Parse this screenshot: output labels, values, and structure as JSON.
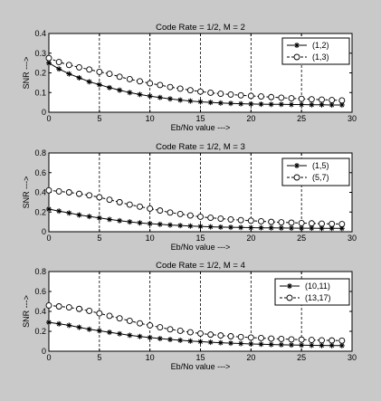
{
  "chart_data": [
    {
      "type": "line",
      "title": "Code Rate = 1/2, M = 2",
      "xlabel": "Eb/No value --->",
      "ylabel": "SNR --->",
      "xlim": [
        0,
        30
      ],
      "ylim": [
        0,
        0.4
      ],
      "xticks": [
        0,
        5,
        10,
        15,
        20,
        25,
        30
      ],
      "yticks": [
        0,
        0.1,
        0.2,
        0.3,
        0.4
      ],
      "grid": "vertical dashed at x ticks",
      "legend_position": "top-right",
      "x": [
        0,
        1,
        2,
        3,
        4,
        5,
        6,
        7,
        8,
        9,
        10,
        11,
        12,
        13,
        14,
        15,
        16,
        17,
        18,
        19,
        20,
        21,
        22,
        23,
        24,
        25,
        26,
        27,
        28,
        29
      ],
      "series": [
        {
          "name": "(1,2)",
          "marker": "asterisk",
          "linestyle": "solid",
          "values": [
            0.25,
            0.22,
            0.195,
            0.175,
            0.155,
            0.14,
            0.125,
            0.112,
            0.1,
            0.09,
            0.082,
            0.075,
            0.068,
            0.062,
            0.057,
            0.053,
            0.05,
            0.047,
            0.045,
            0.043,
            0.042,
            0.041,
            0.04,
            0.04,
            0.039,
            0.039,
            0.038,
            0.038,
            0.037,
            0.037
          ]
        },
        {
          "name": "(1,3)",
          "marker": "circle",
          "linestyle": "dashed",
          "values": [
            0.275,
            0.255,
            0.24,
            0.228,
            0.217,
            0.205,
            0.195,
            0.18,
            0.168,
            0.157,
            0.147,
            0.138,
            0.128,
            0.12,
            0.112,
            0.105,
            0.099,
            0.094,
            0.09,
            0.086,
            0.083,
            0.08,
            0.077,
            0.074,
            0.071,
            0.068,
            0.066,
            0.064,
            0.062,
            0.06
          ]
        }
      ]
    },
    {
      "type": "line",
      "title": "Code Rate = 1/2, M = 3",
      "xlabel": "Eb/No value --->",
      "ylabel": "SNR --->",
      "xlim": [
        0,
        30
      ],
      "ylim": [
        0,
        0.8
      ],
      "xticks": [
        0,
        5,
        10,
        15,
        20,
        25,
        30
      ],
      "yticks": [
        0,
        0.2,
        0.4,
        0.6,
        0.8
      ],
      "grid": "vertical dashed at x ticks",
      "legend_position": "top-right",
      "x": [
        0,
        1,
        2,
        3,
        4,
        5,
        6,
        7,
        8,
        9,
        10,
        11,
        12,
        13,
        14,
        15,
        16,
        17,
        18,
        19,
        20,
        21,
        22,
        23,
        24,
        25,
        26,
        27,
        28,
        29
      ],
      "series": [
        {
          "name": "(1,5)",
          "marker": "asterisk",
          "linestyle": "solid",
          "values": [
            0.23,
            0.21,
            0.19,
            0.17,
            0.155,
            0.14,
            0.125,
            0.112,
            0.1,
            0.09,
            0.082,
            0.075,
            0.068,
            0.063,
            0.058,
            0.054,
            0.05,
            0.047,
            0.045,
            0.043,
            0.041,
            0.04,
            0.039,
            0.038,
            0.037,
            0.036,
            0.036,
            0.035,
            0.035,
            0.034
          ]
        },
        {
          "name": "(5,7)",
          "marker": "circle",
          "linestyle": "dashed",
          "values": [
            0.42,
            0.41,
            0.4,
            0.385,
            0.37,
            0.35,
            0.325,
            0.3,
            0.275,
            0.255,
            0.235,
            0.215,
            0.195,
            0.18,
            0.165,
            0.152,
            0.142,
            0.133,
            0.125,
            0.118,
            0.112,
            0.106,
            0.1,
            0.096,
            0.092,
            0.088,
            0.085,
            0.082,
            0.08,
            0.078
          ]
        }
      ]
    },
    {
      "type": "line",
      "title": "Code Rate = 1/2, M = 4",
      "xlabel": "Eb/No value --->",
      "ylabel": "SNR --->",
      "xlim": [
        0,
        30
      ],
      "ylim": [
        0,
        0.8
      ],
      "xticks": [
        0,
        5,
        10,
        15,
        20,
        25,
        30
      ],
      "yticks": [
        0,
        0.2,
        0.4,
        0.6,
        0.8
      ],
      "grid": "vertical dashed at x ticks",
      "legend_position": "top-right",
      "x": [
        0,
        1,
        2,
        3,
        4,
        5,
        6,
        7,
        8,
        9,
        10,
        11,
        12,
        13,
        14,
        15,
        16,
        17,
        18,
        19,
        20,
        21,
        22,
        23,
        24,
        25,
        26,
        27,
        28,
        29
      ],
      "series": [
        {
          "name": "(10,11)",
          "marker": "asterisk",
          "linestyle": "solid",
          "values": [
            0.29,
            0.275,
            0.26,
            0.24,
            0.22,
            0.205,
            0.19,
            0.175,
            0.16,
            0.148,
            0.137,
            0.127,
            0.118,
            0.11,
            0.102,
            0.096,
            0.09,
            0.085,
            0.081,
            0.077,
            0.073,
            0.07,
            0.067,
            0.065,
            0.063,
            0.061,
            0.059,
            0.058,
            0.057,
            0.056
          ]
        },
        {
          "name": "(13,17)",
          "marker": "circle",
          "linestyle": "dashed",
          "values": [
            0.46,
            0.45,
            0.44,
            0.425,
            0.405,
            0.38,
            0.355,
            0.33,
            0.305,
            0.28,
            0.26,
            0.24,
            0.22,
            0.205,
            0.19,
            0.178,
            0.167,
            0.158,
            0.15,
            0.143,
            0.137,
            0.132,
            0.127,
            0.123,
            0.119,
            0.116,
            0.113,
            0.11,
            0.108,
            0.106
          ]
        }
      ]
    }
  ]
}
